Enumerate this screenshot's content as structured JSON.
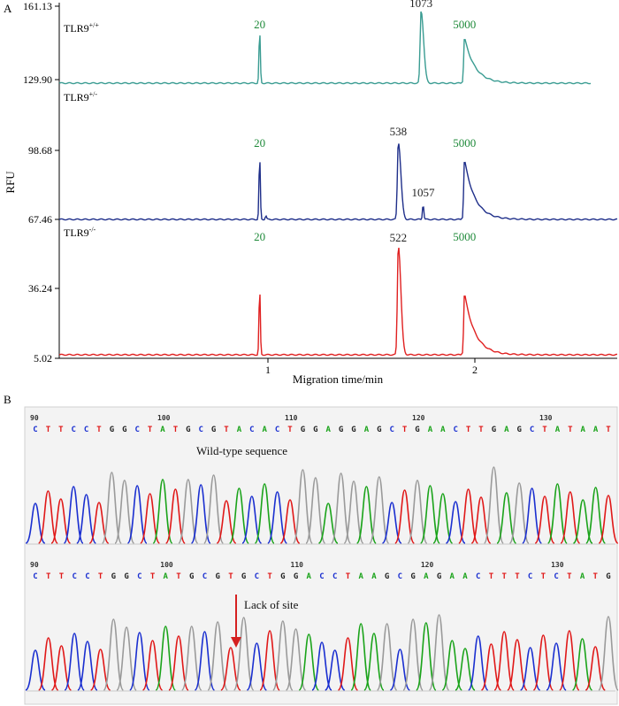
{
  "panel_a_label": "A",
  "panel_b_label": "B",
  "chart_data": {
    "type": "line",
    "xlabel": "Migration time/min",
    "ylabel": "RFU",
    "y_ticks": [
      "161.13",
      "129.90",
      "98.68",
      "67.46",
      "36.24",
      "5.02"
    ],
    "x_ticks": [
      "1",
      "2"
    ],
    "traces": [
      {
        "name": "TLR9",
        "sup": "+/+",
        "color": "#3a9c92",
        "peaks": [
          {
            "label": "20",
            "x": 0.96,
            "label_color": "#1f8a3a"
          },
          {
            "label": "1073",
            "x": 1.74,
            "label_color": "#222222"
          },
          {
            "label": "5000",
            "x": 1.95,
            "label_color": "#1f8a3a"
          }
        ]
      },
      {
        "name": "TLR9",
        "sup": "+/-",
        "color": "#1f2f8a",
        "peaks": [
          {
            "label": "20",
            "x": 0.96,
            "label_color": "#1f8a3a"
          },
          {
            "label": "538",
            "x": 1.63,
            "label_color": "#222222"
          },
          {
            "label": "1057",
            "x": 1.75,
            "label_color": "#222222"
          },
          {
            "label": "5000",
            "x": 1.95,
            "label_color": "#1f8a3a"
          }
        ]
      },
      {
        "name": "TLR9",
        "sup": "-/-",
        "color": "#e02020",
        "peaks": [
          {
            "label": "20",
            "x": 0.96,
            "label_color": "#1f8a3a"
          },
          {
            "label": "522",
            "x": 1.63,
            "label_color": "#222222"
          },
          {
            "label": "5000",
            "x": 1.95,
            "label_color": "#1f8a3a"
          }
        ]
      }
    ]
  },
  "sequences": {
    "wild_type": {
      "annotation": "Wild-type sequence",
      "bases": "CTTCCTGGCTATGCGTACACTGGAGGAGCTGAACTTGAGCTATAAT",
      "positions": [
        "90",
        "100",
        "110",
        "120",
        "130"
      ]
    },
    "mutant": {
      "annotation": "Lack of site",
      "bases": "CTTCCTGGCTATGCGTGCTGGACCTAAGCGAGAACTTTCTCTATG",
      "positions": [
        "90",
        "100",
        "110",
        "120",
        "130"
      ]
    },
    "base_colors": {
      "A": "#1aa31a",
      "T": "#e01818",
      "C": "#1a2fd0",
      "G": "#222222"
    }
  }
}
